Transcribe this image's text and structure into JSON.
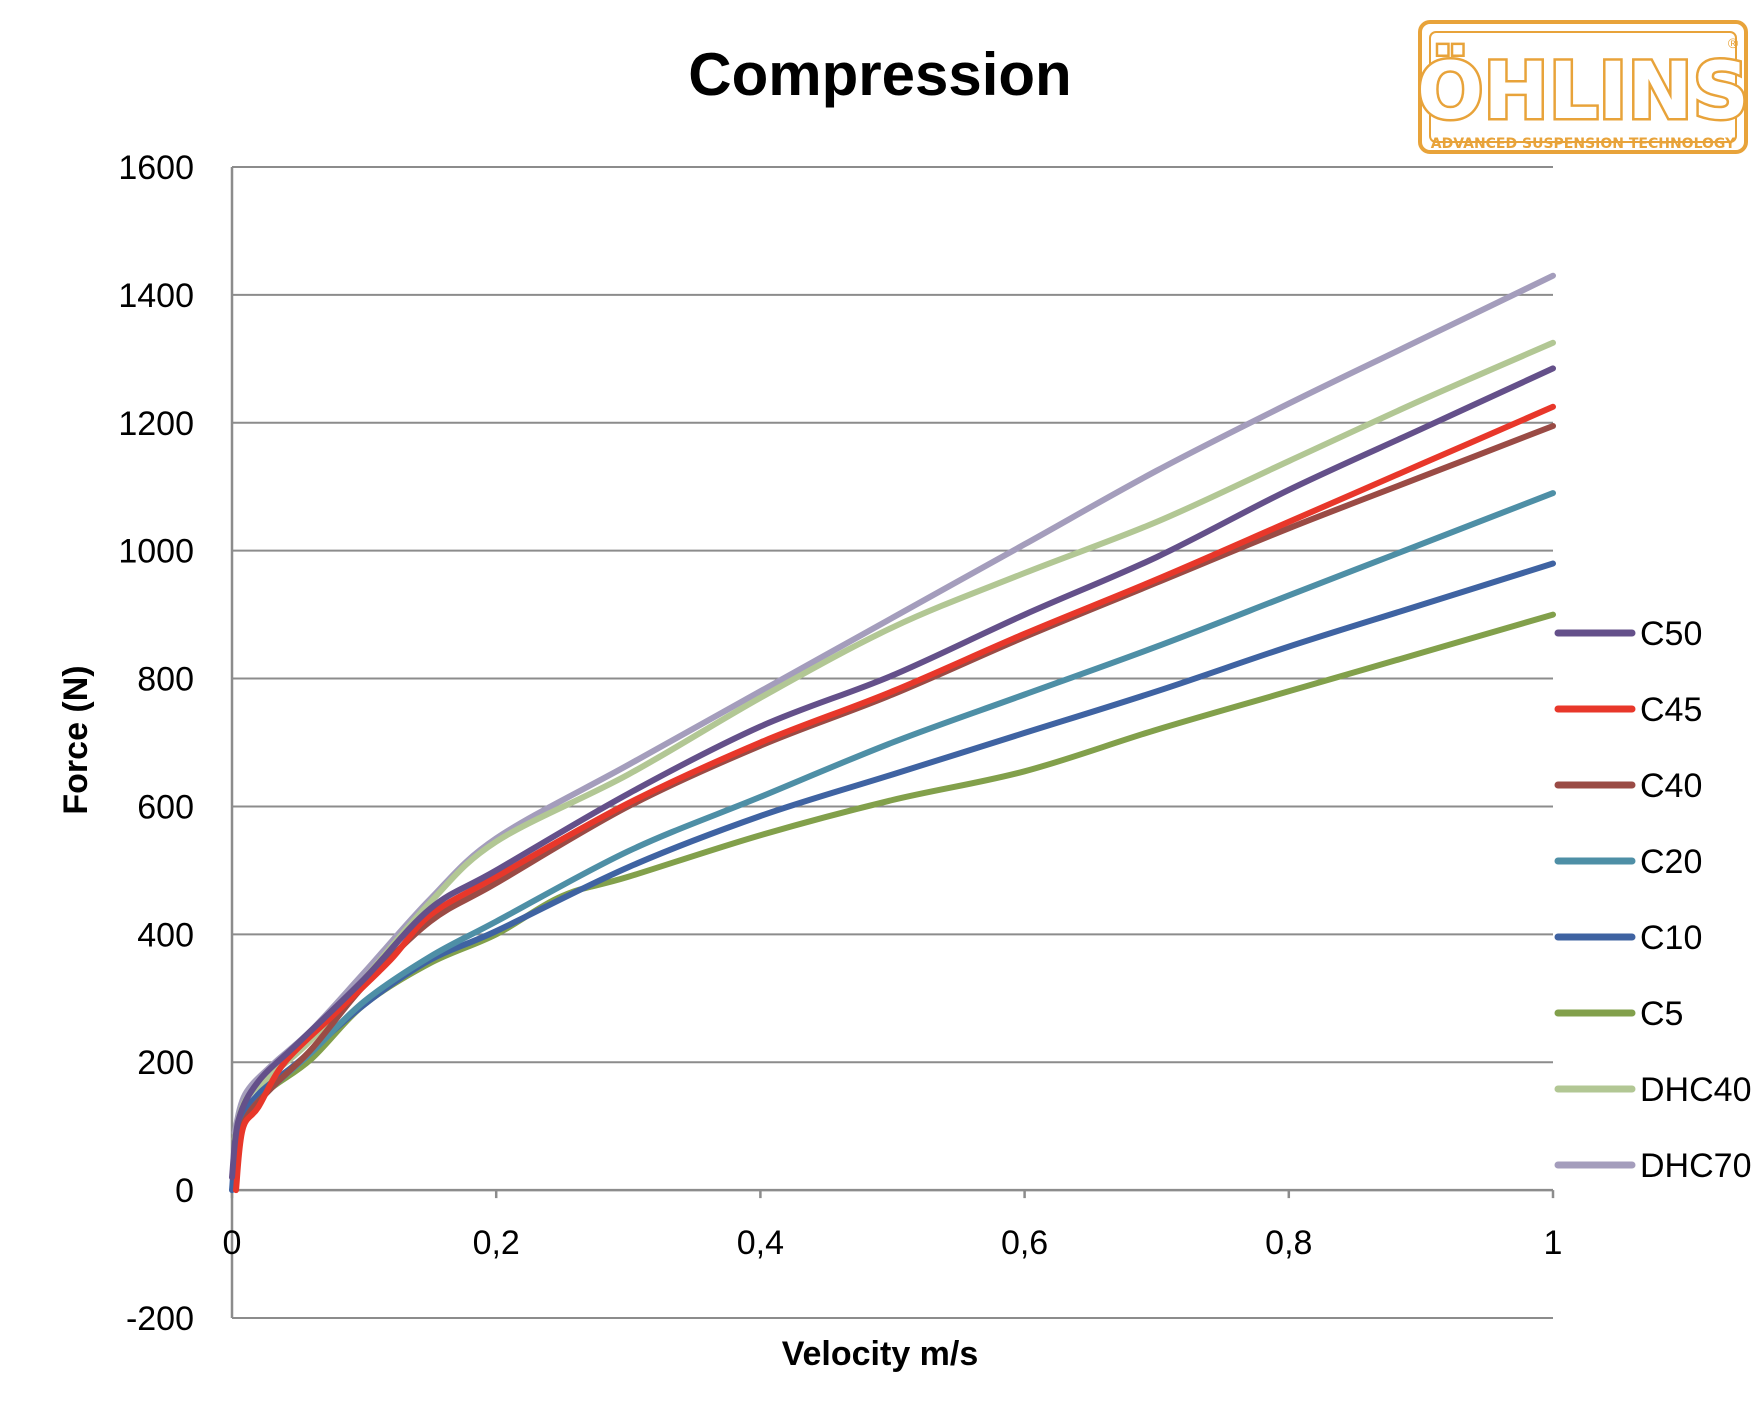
{
  "logo": {
    "brand": "ÖHLINS",
    "tagline": "ADVANCED SUSPENSION TECHNOLOGY",
    "registered_mark": "®",
    "color": "#E8A33A"
  },
  "chart_data": {
    "type": "line",
    "title": "Compression",
    "xlabel": "Velocity m/s",
    "ylabel": "Force (N)",
    "xlim": [
      0,
      1
    ],
    "ylim": [
      -200,
      1600
    ],
    "x_ticks": [
      0,
      0.2,
      0.4,
      0.6,
      0.8,
      1
    ],
    "x_tick_labels": [
      "0",
      "0,2",
      "0,4",
      "0,6",
      "0,8",
      "1"
    ],
    "y_ticks": [
      -200,
      0,
      200,
      400,
      600,
      800,
      1000,
      1200,
      1400,
      1600
    ],
    "y_tick_labels": [
      "-200",
      "0",
      "200",
      "400",
      "600",
      "800",
      "1000",
      "1200",
      "1400",
      "1600"
    ],
    "grid": "horizontal",
    "legend_position": "right",
    "series": [
      {
        "name": "C50",
        "color": "#64508A",
        "points": [
          [
            0,
            20
          ],
          [
            0.005,
            110
          ],
          [
            0.02,
            170
          ],
          [
            0.05,
            230
          ],
          [
            0.1,
            330
          ],
          [
            0.15,
            440
          ],
          [
            0.2,
            500
          ],
          [
            0.3,
            620
          ],
          [
            0.4,
            725
          ],
          [
            0.5,
            805
          ],
          [
            0.6,
            900
          ],
          [
            0.7,
            990
          ],
          [
            0.8,
            1095
          ],
          [
            0.9,
            1190
          ],
          [
            1,
            1285
          ]
        ]
      },
      {
        "name": "C45",
        "color": "#E8372A",
        "points": [
          [
            0.003,
            0
          ],
          [
            0.008,
            95
          ],
          [
            0.02,
            130
          ],
          [
            0.04,
            200
          ],
          [
            0.08,
            280
          ],
          [
            0.12,
            360
          ],
          [
            0.15,
            430
          ],
          [
            0.2,
            490
          ],
          [
            0.3,
            605
          ],
          [
            0.4,
            700
          ],
          [
            0.5,
            780
          ],
          [
            0.6,
            870
          ],
          [
            0.7,
            955
          ],
          [
            0.8,
            1045
          ],
          [
            0.9,
            1135
          ],
          [
            1,
            1225
          ]
        ]
      },
      {
        "name": "C40",
        "color": "#9A4B45",
        "points": [
          [
            0.003,
            40
          ],
          [
            0.01,
            110
          ],
          [
            0.03,
            160
          ],
          [
            0.06,
            220
          ],
          [
            0.1,
            320
          ],
          [
            0.15,
            420
          ],
          [
            0.2,
            480
          ],
          [
            0.3,
            600
          ],
          [
            0.4,
            695
          ],
          [
            0.5,
            775
          ],
          [
            0.6,
            865
          ],
          [
            0.7,
            950
          ],
          [
            0.8,
            1035
          ],
          [
            0.9,
            1115
          ],
          [
            1,
            1195
          ]
        ]
      },
      {
        "name": "C20",
        "color": "#4E8FA6",
        "points": [
          [
            0.002,
            40
          ],
          [
            0.01,
            110
          ],
          [
            0.03,
            160
          ],
          [
            0.06,
            215
          ],
          [
            0.1,
            295
          ],
          [
            0.15,
            365
          ],
          [
            0.2,
            420
          ],
          [
            0.3,
            530
          ],
          [
            0.4,
            615
          ],
          [
            0.5,
            700
          ],
          [
            0.6,
            775
          ],
          [
            0.7,
            850
          ],
          [
            0.8,
            930
          ],
          [
            0.9,
            1010
          ],
          [
            1,
            1090
          ]
        ]
      },
      {
        "name": "C10",
        "color": "#3F63A2",
        "points": [
          [
            0,
            0
          ],
          [
            0.005,
            100
          ],
          [
            0.02,
            150
          ],
          [
            0.05,
            200
          ],
          [
            0.1,
            290
          ],
          [
            0.15,
            360
          ],
          [
            0.2,
            405
          ],
          [
            0.3,
            505
          ],
          [
            0.4,
            585
          ],
          [
            0.5,
            650
          ],
          [
            0.6,
            715
          ],
          [
            0.7,
            780
          ],
          [
            0.8,
            850
          ],
          [
            0.9,
            915
          ],
          [
            1,
            980
          ]
        ]
      },
      {
        "name": "C5",
        "color": "#82A04B",
        "points": [
          [
            0.002,
            50
          ],
          [
            0.01,
            120
          ],
          [
            0.03,
            160
          ],
          [
            0.06,
            205
          ],
          [
            0.1,
            290
          ],
          [
            0.15,
            355
          ],
          [
            0.2,
            400
          ],
          [
            0.25,
            460
          ],
          [
            0.3,
            490
          ],
          [
            0.4,
            555
          ],
          [
            0.5,
            610
          ],
          [
            0.6,
            655
          ],
          [
            0.7,
            720
          ],
          [
            0.8,
            780
          ],
          [
            0.9,
            840
          ],
          [
            1,
            900
          ]
        ]
      },
      {
        "name": "DHC40",
        "color": "#B2C794",
        "points": [
          [
            0.002,
            80
          ],
          [
            0.01,
            140
          ],
          [
            0.03,
            180
          ],
          [
            0.06,
            235
          ],
          [
            0.1,
            330
          ],
          [
            0.15,
            450
          ],
          [
            0.2,
            545
          ],
          [
            0.3,
            650
          ],
          [
            0.4,
            770
          ],
          [
            0.5,
            880
          ],
          [
            0.6,
            965
          ],
          [
            0.7,
            1045
          ],
          [
            0.8,
            1140
          ],
          [
            0.9,
            1235
          ],
          [
            1,
            1325
          ]
        ]
      },
      {
        "name": "DHC70",
        "color": "#A49DBC",
        "points": [
          [
            0.002,
            90
          ],
          [
            0.01,
            150
          ],
          [
            0.03,
            195
          ],
          [
            0.06,
            250
          ],
          [
            0.1,
            340
          ],
          [
            0.15,
            455
          ],
          [
            0.2,
            550
          ],
          [
            0.3,
            665
          ],
          [
            0.4,
            780
          ],
          [
            0.5,
            895
          ],
          [
            0.6,
            1010
          ],
          [
            0.7,
            1125
          ],
          [
            0.8,
            1230
          ],
          [
            0.9,
            1330
          ],
          [
            1,
            1430
          ]
        ]
      }
    ]
  }
}
